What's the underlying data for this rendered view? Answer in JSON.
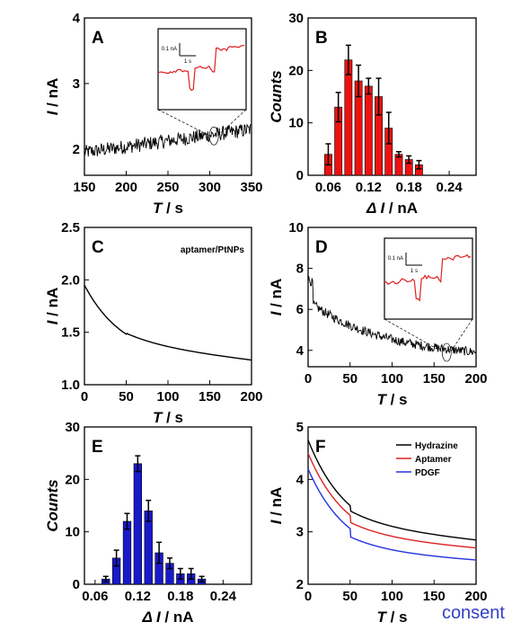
{
  "figure": {
    "footer_text": "consent"
  },
  "chart_data": [
    {
      "panel": "A",
      "type": "line",
      "xlabel_symbol": "T",
      "xlabel_unit": " / s",
      "ylabel_symbol": "I",
      "ylabel_unit": " / nA",
      "xlim": [
        150,
        350
      ],
      "ylim": [
        1.6,
        4.0
      ],
      "xticks": [
        150,
        200,
        250,
        300,
        350
      ],
      "yticks": [
        2,
        3,
        4
      ],
      "series": [
        {
          "color": "#000000",
          "shape": "noisy-trace",
          "start": 1.95,
          "end": 2.3
        }
      ],
      "inset": {
        "scale_y": "0.1 nA",
        "scale_x": "1 s",
        "color": "#e02020",
        "zoom_x": 305,
        "zoom_y": 2.2
      }
    },
    {
      "panel": "B",
      "type": "bar",
      "xlabel_symbol": "Δ I",
      "xlabel_unit": " / nA",
      "ylabel_symbol": "Counts",
      "ylabel_unit": "",
      "xlim": [
        0.03,
        0.28
      ],
      "ylim": [
        0,
        30
      ],
      "xticks": [
        0.06,
        0.12,
        0.18,
        0.24
      ],
      "xtick_labels": [
        "0.06",
        "0.12",
        "0.18",
        "0.24"
      ],
      "yticks": [
        0,
        10,
        20,
        30
      ],
      "bar_width": 0.011,
      "bar_color": "#ee1111",
      "x": [
        0.06,
        0.075,
        0.09,
        0.105,
        0.12,
        0.135,
        0.15,
        0.165,
        0.18,
        0.195,
        0.21,
        0.225,
        0.24
      ],
      "values": [
        4,
        13,
        22,
        18,
        17,
        15,
        9,
        4,
        3,
        2,
        0,
        0,
        0
      ],
      "errors": [
        2,
        2.8,
        2.8,
        3,
        1.5,
        3.5,
        3,
        0.5,
        0.7,
        0.8,
        0,
        0,
        0
      ]
    },
    {
      "panel": "C",
      "type": "line",
      "xlabel_symbol": "T",
      "xlabel_unit": " / s",
      "ylabel_symbol": "I",
      "ylabel_unit": " / nA",
      "xlim": [
        0,
        200
      ],
      "ylim": [
        1.0,
        2.5
      ],
      "xticks": [
        0,
        50,
        100,
        150,
        200
      ],
      "yticks": [
        1.0,
        1.5,
        2.0,
        2.5
      ],
      "ytick_labels": [
        "1.0",
        "1.5",
        "2.0",
        "2.5"
      ],
      "legend": "aptamer/PtNPs",
      "series": [
        {
          "color": "#000000",
          "start": 1.95,
          "end": 1.23,
          "mid": 1.5
        }
      ]
    },
    {
      "panel": "D",
      "type": "line",
      "xlabel_symbol": "T",
      "xlabel_unit": " / s",
      "ylabel_symbol": "I",
      "ylabel_unit": " / nA",
      "xlim": [
        0,
        200
      ],
      "ylim": [
        3.2,
        10
      ],
      "xticks": [
        0,
        50,
        100,
        150,
        200
      ],
      "yticks": [
        4,
        6,
        8,
        10
      ],
      "series": [
        {
          "color": "#000000",
          "shape": "noisy-decay",
          "start": 7.5,
          "end": 3.6
        }
      ],
      "inset": {
        "scale_y": "0.1 nA",
        "scale_x": "1 s",
        "color": "#e02020",
        "zoom_x": 165,
        "zoom_y": 3.9
      }
    },
    {
      "panel": "E",
      "type": "bar",
      "xlabel_symbol": "Δ I",
      "xlabel_unit": " / nA",
      "ylabel_symbol": "Counts",
      "ylabel_unit": "",
      "xlim": [
        0.045,
        0.28
      ],
      "ylim": [
        0,
        30
      ],
      "xticks": [
        0.06,
        0.12,
        0.18,
        0.24
      ],
      "xtick_labels": [
        "0.06",
        "0.12",
        "0.18",
        "0.24"
      ],
      "yticks": [
        0,
        10,
        20,
        30
      ],
      "bar_width": 0.011,
      "bar_color": "#1919cc",
      "x": [
        0.075,
        0.09,
        0.105,
        0.12,
        0.135,
        0.15,
        0.165,
        0.18,
        0.195,
        0.21,
        0.225,
        0.24
      ],
      "values": [
        1,
        5,
        12,
        23,
        14,
        6,
        4,
        2,
        2,
        1,
        0,
        0
      ],
      "errors": [
        0.5,
        1.5,
        1.5,
        1.5,
        2,
        2,
        1,
        1,
        1,
        0.5,
        0,
        0
      ]
    },
    {
      "panel": "F",
      "type": "line",
      "xlabel_symbol": "T",
      "xlabel_unit": " / s",
      "ylabel_symbol": "I",
      "ylabel_unit": " / nA",
      "xlim": [
        0,
        200
      ],
      "ylim": [
        2,
        5
      ],
      "xticks": [
        0,
        50,
        100,
        150,
        200
      ],
      "yticks": [
        2,
        3,
        4,
        5
      ],
      "series": [
        {
          "name": "Hydrazine",
          "color": "#000000",
          "start": 4.75,
          "mid": 3.3,
          "end": 2.83
        },
        {
          "name": "Aptamer",
          "color": "#dd2222",
          "start": 4.5,
          "mid": 3.05,
          "end": 2.68
        },
        {
          "name": "PDGF",
          "color": "#2233dd",
          "start": 4.2,
          "mid": 2.75,
          "end": 2.45
        }
      ]
    }
  ]
}
